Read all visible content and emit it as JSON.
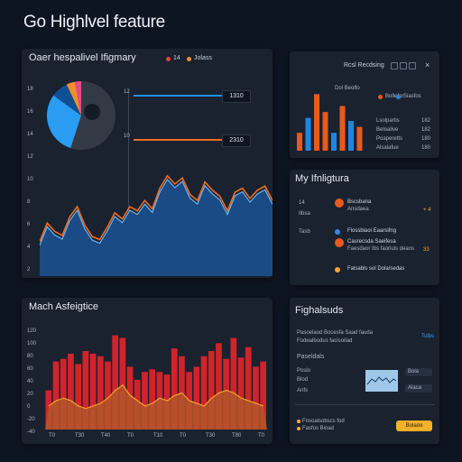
{
  "page_title": "Go Highlvel feature",
  "overview": {
    "title": "Oaer hespalivel Ifigmary",
    "legend_a": "14",
    "legend_b": "Jolass",
    "y_ticks": [
      "18",
      "16",
      "14",
      "12",
      "10",
      "8",
      "6",
      "4",
      "2"
    ],
    "line_labels": [
      "12",
      "10"
    ],
    "value_a": "1310",
    "value_b": "2310",
    "colors": {
      "blue": "#1e8fe6",
      "orange": "#ef6b1e",
      "area": "#1a4b84"
    },
    "area_values": [
      30,
      48,
      40,
      36,
      54,
      64,
      46,
      35,
      32,
      44,
      58,
      52,
      64,
      60,
      70,
      62,
      82,
      94,
      86,
      92,
      76,
      70,
      88,
      80,
      74,
      60,
      78,
      82,
      72,
      80,
      84,
      70
    ],
    "pie_segments": [
      {
        "name": "dark",
        "value": 55,
        "color": "#333a46"
      },
      {
        "name": "blue",
        "value": 30,
        "color": "#2a9cf2"
      },
      {
        "name": "navy",
        "value": 8,
        "color": "#0f4f96"
      },
      {
        "name": "orange",
        "value": 4,
        "color": "#f0902a"
      },
      {
        "name": "pink",
        "value": 3,
        "color": "#e94a8a"
      }
    ]
  },
  "top_right": {
    "title": "Rcsl Recdsing",
    "legend_title": "Dol Beolfo",
    "legend_1": "Bollefor",
    "legend_2": "Siasfos",
    "bars": [
      {
        "value": 30,
        "color": "#e8591c"
      },
      {
        "value": 55,
        "color": "#1e86e0"
      },
      {
        "value": 95,
        "color": "#e8591c"
      },
      {
        "value": 65,
        "color": "#e8591c"
      },
      {
        "value": 30,
        "color": "#1e86e0"
      },
      {
        "value": 75,
        "color": "#e8591c"
      },
      {
        "value": 50,
        "color": "#1e86e0"
      },
      {
        "value": 40,
        "color": "#e8591c"
      }
    ],
    "rows": [
      {
        "label": "Lsolpartis",
        "value": "182"
      },
      {
        "label": "Beloalive",
        "value": "182"
      },
      {
        "label": "Poaperetts",
        "value": "180"
      },
      {
        "label": "Alsalafue",
        "value": "180"
      }
    ]
  },
  "integrations": {
    "title": "My Ifnligtura",
    "items": [
      {
        "tag": "14",
        "label": "Bscsbana",
        "sub": "Ansdaea",
        "side": "Ilbsa",
        "value": "+ 4",
        "color": "#e8591c"
      },
      {
        "tag": "Tasb",
        "label": "Flossbiaoi Eaarsifng",
        "sub": "",
        "side": "",
        "value": "",
        "color": "#3a86e0"
      },
      {
        "tag": "",
        "label": "Casrecsda Saeifesa",
        "sub": "Faesdaor Ibs faoriuls deans",
        "side": "",
        "value": "33",
        "color": "#e8591c"
      },
      {
        "tag": "",
        "label": "Falsabls sol Dola/sedas",
        "sub": "",
        "side": "",
        "value": "",
        "color": "#f0a23a"
      }
    ]
  },
  "analytics": {
    "title": "Mach Asfeigtice",
    "y_ticks": [
      "120",
      "100",
      "80",
      "60",
      "40",
      "20",
      "0",
      "-20",
      "-40"
    ],
    "x_ticks": [
      "T0",
      "T30",
      "T40",
      "T0",
      "T10",
      "T0",
      "T30",
      "T80",
      "T0"
    ],
    "bar_values": [
      30,
      52,
      54,
      58,
      50,
      60,
      58,
      56,
      52,
      72,
      70,
      48,
      38,
      44,
      46,
      44,
      42,
      62,
      56,
      44,
      48,
      56,
      60,
      66,
      54,
      70,
      55,
      63,
      48,
      52
    ],
    "line_values": [
      18,
      22,
      24,
      22,
      18,
      16,
      18,
      20,
      24,
      30,
      34,
      26,
      22,
      18,
      20,
      24,
      22,
      26,
      28,
      22,
      20,
      18,
      24,
      28,
      30,
      28,
      24,
      22,
      20,
      18
    ],
    "colors": {
      "bar": "#d0242a",
      "line": "#f4a12a"
    }
  },
  "highlights": {
    "title": "Fighalsuds",
    "link": "Tolbs",
    "desc_1": "Pasoelaod Bocesfa Saad fauda",
    "desc_2": "Fodealbodus facisoilad",
    "section": "Paseldals",
    "field_labels": [
      "Poslo",
      "Blod",
      "Anfs"
    ],
    "input_1": "Bola",
    "input_2": "Alaca",
    "footer_1": "Fosoalsobscs fod",
    "footer_2": "Fasfos Bioad",
    "button": "Bolaoo",
    "accent": "#f4b02a"
  }
}
